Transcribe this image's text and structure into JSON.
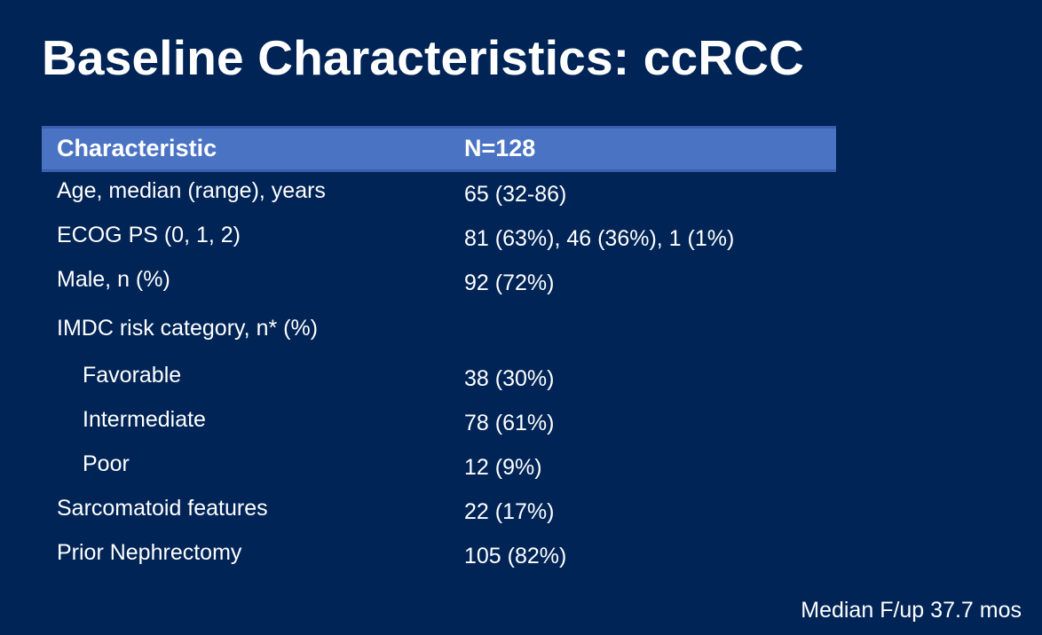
{
  "slide": {
    "title": "Baseline Characteristics: ccRCC",
    "footnote": "Median F/up 37.7 mos"
  },
  "table": {
    "columns": [
      "Characteristic",
      "N=128"
    ],
    "rows": [
      {
        "label": "Age, median (range), years",
        "value": "65 (32-86)",
        "indent": false
      },
      {
        "label": "ECOG PS (0, 1, 2)",
        "value": "81 (63%), 46 (36%), 1 (1%)",
        "indent": false
      },
      {
        "label": "Male, n (%)",
        "value": "92 (72%)",
        "indent": false
      },
      {
        "label": "IMDC risk category, n* (%)",
        "value": "",
        "indent": false
      },
      {
        "label": "Favorable",
        "value": "38 (30%)",
        "indent": true
      },
      {
        "label": "Intermediate",
        "value": "78 (61%)",
        "indent": true
      },
      {
        "label": "Poor",
        "value": "12 (9%)",
        "indent": true
      },
      {
        "label": "Sarcomatoid features",
        "value": "22 (17%)",
        "indent": false
      },
      {
        "label": "Prior Nephrectomy",
        "value": "105 (82%)",
        "indent": false
      }
    ]
  },
  "colors": {
    "background": "#002456",
    "header_band": "#4a73c4",
    "text": "#ffffff"
  }
}
